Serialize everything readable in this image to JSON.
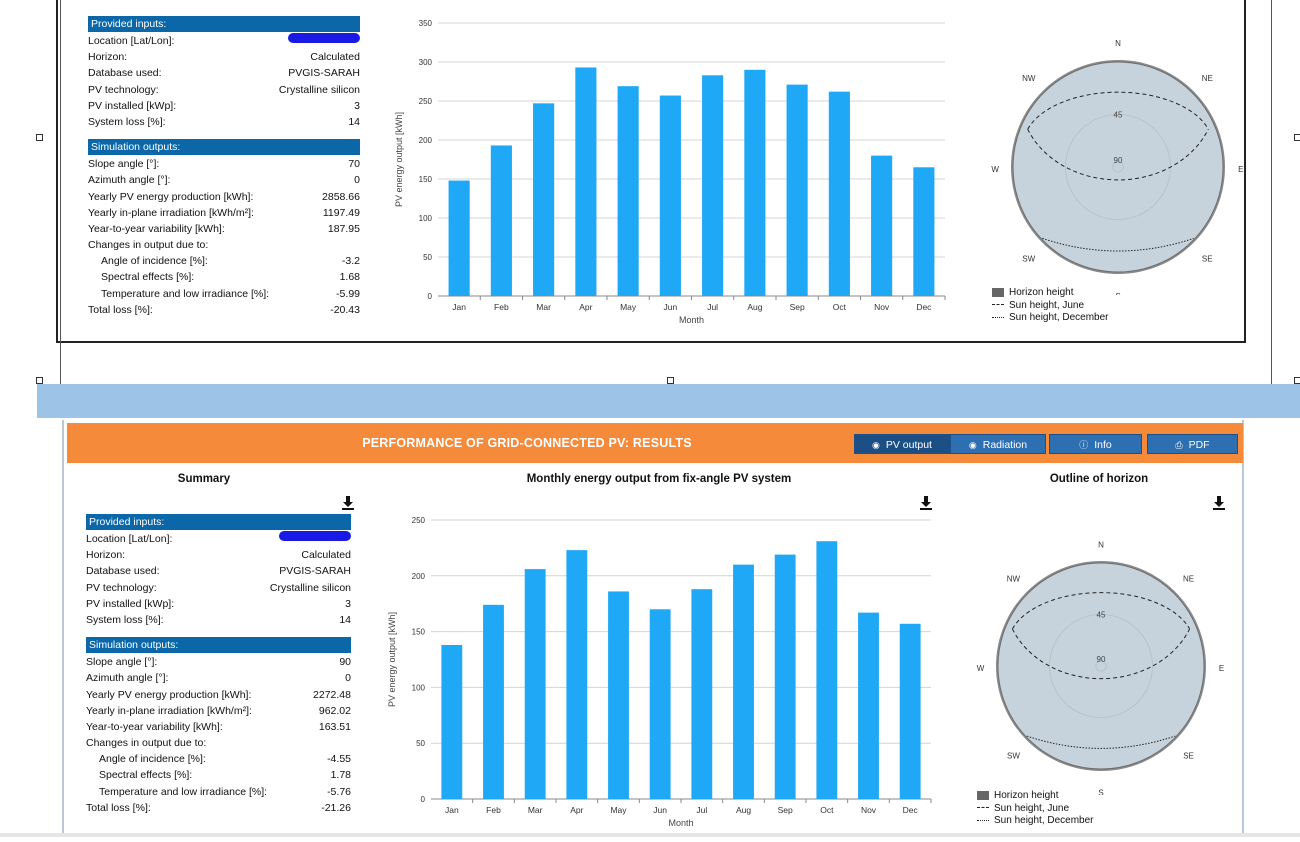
{
  "colors": {
    "accent_orange": "#f58a3b",
    "table_header": "#0b67a8",
    "bar": "#1fa8f5",
    "horizon_fill": "#c7d3dc",
    "band": "#9dc3e6"
  },
  "top": {
    "summary": {
      "provided_header": "Provided inputs:",
      "provided": [
        {
          "k": "Location [Lat/Lon]:",
          "v": ""
        },
        {
          "k": "Horizon:",
          "v": "Calculated"
        },
        {
          "k": "Database used:",
          "v": "PVGIS-SARAH"
        },
        {
          "k": "PV technology:",
          "v": "Crystalline silicon"
        },
        {
          "k": "PV installed [kWp]:",
          "v": "3"
        },
        {
          "k": "System loss [%]:",
          "v": "14"
        }
      ],
      "sim_header": "Simulation outputs:",
      "sim": [
        {
          "k": "Slope angle [°]:",
          "v": "70",
          "ind": false
        },
        {
          "k": "Azimuth angle [°]:",
          "v": "0",
          "ind": false
        },
        {
          "k": "Yearly PV energy production [kWh]:",
          "v": "2858.66",
          "ind": false
        },
        {
          "k": "Yearly in-plane irradiation [kWh/m²]:",
          "v": "1197.49",
          "ind": false
        },
        {
          "k": "Year-to-year variability [kWh]:",
          "v": "187.95",
          "ind": false
        },
        {
          "k": "Changes in output due to:",
          "v": "",
          "ind": false
        },
        {
          "k": "Angle of incidence [%]:",
          "v": "-3.2",
          "ind": true
        },
        {
          "k": "Spectral effects [%]:",
          "v": "1.68",
          "ind": true
        },
        {
          "k": "Temperature and low irradiance [%]:",
          "v": "-5.99",
          "ind": true
        },
        {
          "k": "Total loss [%]:",
          "v": "-20.43",
          "ind": false
        }
      ]
    }
  },
  "bottom": {
    "results_title": "PERFORMANCE OF GRID-CONNECTED PV: RESULTS",
    "tabs": [
      {
        "label": "PV output",
        "icon": "eye-icon"
      },
      {
        "label": "Radiation",
        "icon": "eye-icon"
      },
      {
        "label": "Info",
        "icon": "info-icon"
      },
      {
        "label": "PDF",
        "icon": "printer-icon"
      }
    ],
    "summary_title": "Summary",
    "chart_title": "Monthly energy output from fix-angle PV system",
    "horizon_title": "Outline of horizon",
    "summary": {
      "provided_header": "Provided inputs:",
      "provided": [
        {
          "k": "Location [Lat/Lon]:",
          "v": ""
        },
        {
          "k": "Horizon:",
          "v": "Calculated"
        },
        {
          "k": "Database used:",
          "v": "PVGIS-SARAH"
        },
        {
          "k": "PV technology:",
          "v": "Crystalline silicon"
        },
        {
          "k": "PV installed [kWp]:",
          "v": "3"
        },
        {
          "k": "System loss [%]:",
          "v": "14"
        }
      ],
      "sim_header": "Simulation outputs:",
      "sim": [
        {
          "k": "Slope angle [°]:",
          "v": "90",
          "ind": false
        },
        {
          "k": "Azimuth angle [°]:",
          "v": "0",
          "ind": false
        },
        {
          "k": "Yearly PV energy production [kWh]:",
          "v": "2272.48",
          "ind": false
        },
        {
          "k": "Yearly in-plane irradiation [kWh/m²]:",
          "v": "962.02",
          "ind": false
        },
        {
          "k": "Year-to-year variability [kWh]:",
          "v": "163.51",
          "ind": false
        },
        {
          "k": "Changes in output due to:",
          "v": "",
          "ind": false
        },
        {
          "k": "Angle of incidence [%]:",
          "v": "-4.55",
          "ind": true
        },
        {
          "k": "Spectral effects [%]:",
          "v": "1.78",
          "ind": true
        },
        {
          "k": "Temperature and low irradiance [%]:",
          "v": "-5.76",
          "ind": true
        },
        {
          "k": "Total loss [%]:",
          "v": "-21.26",
          "ind": false
        }
      ]
    }
  },
  "horizon_labels": {
    "compass": [
      "N",
      "NE",
      "E",
      "SE",
      "S",
      "SW",
      "W",
      "NW"
    ],
    "rings": [
      "45",
      "90"
    ],
    "legend": [
      "Horizon height",
      "Sun height, June",
      "Sun height, December"
    ]
  },
  "chart_data": [
    {
      "type": "bar",
      "categories": [
        "Jan",
        "Feb",
        "Mar",
        "Apr",
        "May",
        "Jun",
        "Jul",
        "Aug",
        "Sep",
        "Oct",
        "Nov",
        "Dec"
      ],
      "values": [
        148,
        193,
        247,
        293,
        269,
        257,
        283,
        290,
        271,
        262,
        180,
        165
      ],
      "ylabel": "PV energy output [kWh]",
      "xlabel": "Month",
      "yticks": [
        0,
        50,
        100,
        150,
        200,
        250,
        300,
        350
      ],
      "ylim": [
        0,
        350
      ]
    },
    {
      "type": "bar",
      "categories": [
        "Jan",
        "Feb",
        "Mar",
        "Apr",
        "May",
        "Jun",
        "Jul",
        "Aug",
        "Sep",
        "Oct",
        "Nov",
        "Dec"
      ],
      "values": [
        138,
        174,
        206,
        223,
        186,
        170,
        188,
        210,
        219,
        231,
        167,
        157
      ],
      "ylabel": "PV energy output [kWh]",
      "xlabel": "Month",
      "yticks": [
        0,
        50,
        100,
        150,
        200,
        250
      ],
      "ylim": [
        0,
        250
      ]
    }
  ]
}
